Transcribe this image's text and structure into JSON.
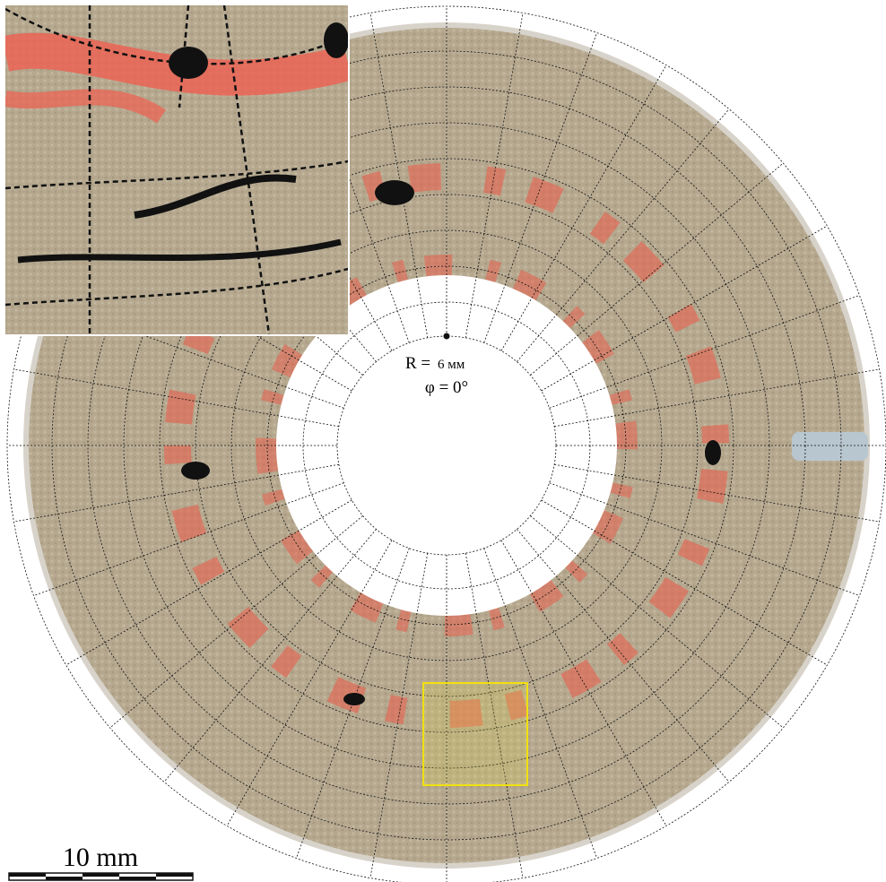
{
  "labels": {
    "radius_prefix": "R =",
    "radius_value": "6 мм",
    "angle": "φ = 0°"
  },
  "scale_bar": {
    "label": "10 mm"
  }
}
